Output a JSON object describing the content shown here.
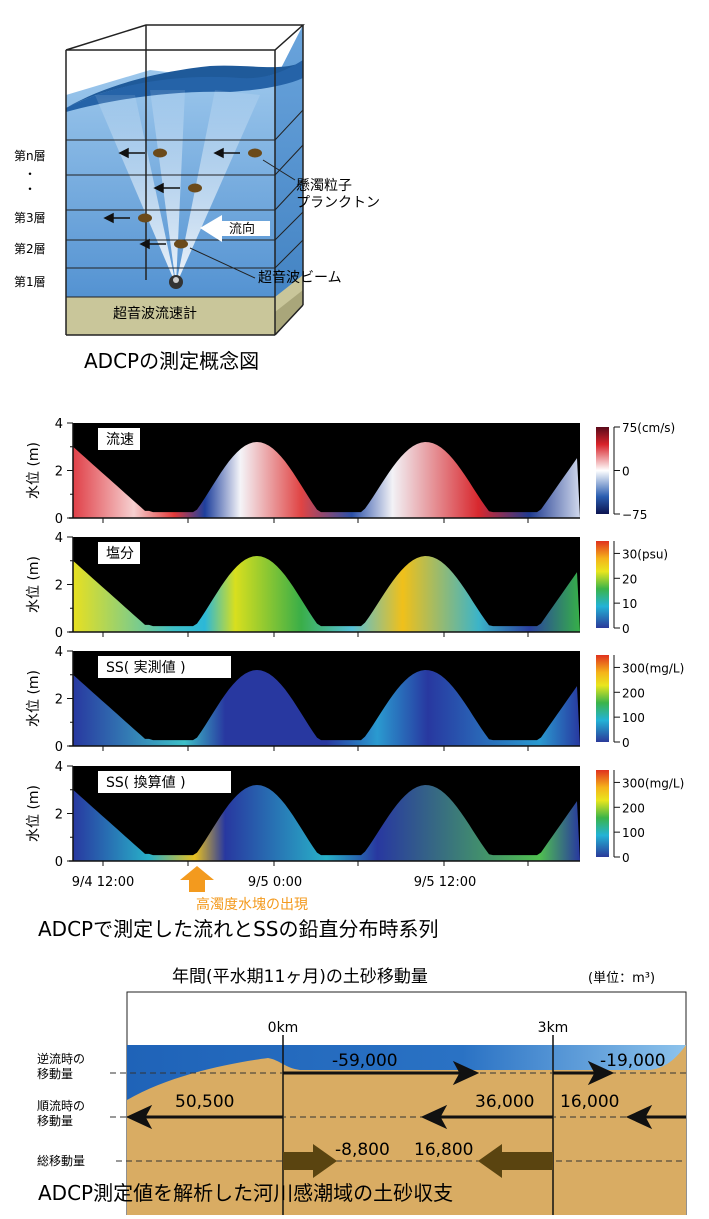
{
  "concept": {
    "caption": "ADCPの測定概念図",
    "layers": [
      "第n層",
      "・",
      "・",
      "第3層",
      "第2層",
      "第1層"
    ],
    "labels": {
      "particles": "懸濁粒子",
      "plankton": "プランクトン",
      "flow_direction": "流向",
      "beam": "超音波ビーム",
      "meter": "超音波流速計"
    }
  },
  "timeseries": {
    "caption": "ADCPで測定した流れとSSの鉛直分布時系列",
    "ylabel": "水位 (m)",
    "yticks": [
      "0",
      "2",
      "4"
    ],
    "xticks": [
      "9/4 12:00",
      "9/5 0:00",
      "9/5 12:00"
    ],
    "annotation": "高濁度水塊の出現",
    "annotation_color": "#f39a1e",
    "panels": [
      {
        "label": "流速",
        "scale": [
          "75(cm/s)",
          "0",
          "−75"
        ],
        "colormap": "red-white-blue"
      },
      {
        "label": "塩分",
        "scale": [
          "30(psu)",
          "20",
          "10",
          "0"
        ],
        "colormap": "jet"
      },
      {
        "label": "SS( 実測値 )",
        "scale": [
          "300(mg/L)",
          "200",
          "100",
          "0"
        ],
        "colormap": "jet"
      },
      {
        "label": "SS( 換算値 )",
        "scale": [
          "300(mg/L)",
          "200",
          "100",
          "0"
        ],
        "colormap": "jet"
      }
    ]
  },
  "budget": {
    "title": "年間(平水期11ヶ月)の土砂移動量",
    "unit": "(単位：m³)",
    "km_labels": [
      "0km",
      "3km"
    ],
    "row_labels": {
      "reverse": [
        "逆流時の",
        "移動量"
      ],
      "forward": [
        "順流時の",
        "移動量"
      ],
      "total": "総移動量"
    },
    "values": {
      "reverse_mid": "-59,000",
      "reverse_right": "-19,000",
      "forward_left": "50,500",
      "forward_mid": "36,000",
      "forward_right": "16,000",
      "total_mid_left": "-8,800",
      "total_mid_right": "16,800"
    },
    "caption": "ADCP測定値を解析した河川感潮域の土砂収支"
  }
}
